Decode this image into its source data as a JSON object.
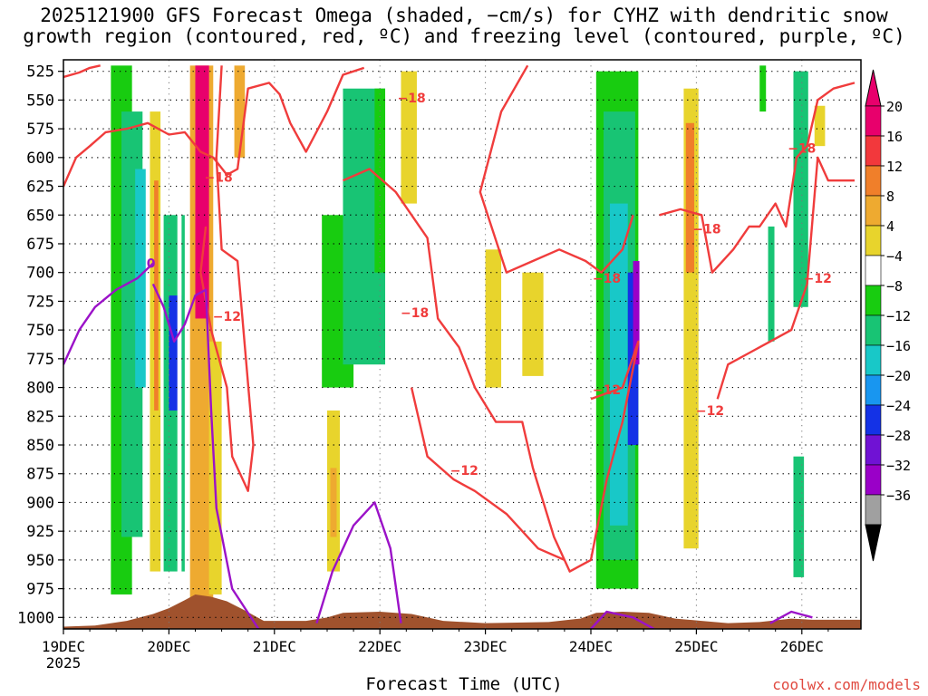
{
  "title_line1": "2025121900 GFS Forecast Omega (shaded, −cm/s) for CYHZ with dendritic snow",
  "title_line2": "growth region (contoured, red, ºC) and freezing level (contoured, purple, ºC)",
  "xlabel": "Forecast Time (UTC)",
  "credit": "coolwx.com/models",
  "chart_data": {
    "type": "heatmap",
    "x_range": [
      "2025-12-19 00Z",
      "2025-12-26 15Z"
    ],
    "x_ticks": [
      "19DEC",
      "20DEC",
      "21DEC",
      "22DEC",
      "23DEC",
      "24DEC",
      "25DEC",
      "26DEC"
    ],
    "x_tick_year": "2025",
    "y_ticks": [
      "525",
      "550",
      "575",
      "600",
      "625",
      "650",
      "675",
      "700",
      "725",
      "750",
      "775",
      "800",
      "825",
      "850",
      "875",
      "900",
      "925",
      "950",
      "975",
      "1000"
    ],
    "y_range_hpa": [
      1010,
      515
    ],
    "grid": "dotted",
    "colorbar": {
      "labels": [
        "20",
        "16",
        "12",
        "8",
        "4",
        "−4",
        "−8",
        "−12",
        "−16",
        "−20",
        "−24",
        "−28",
        "−32",
        "−36"
      ],
      "colors": [
        "#e8006c",
        "#f2383c",
        "#f07f2a",
        "#eeaa30",
        "#e8d42c",
        "#ffffff",
        "#18cc10",
        "#18c474",
        "#18c8c8",
        "#1896f0",
        "#1432e6",
        "#7012d4",
        "#9a00c8",
        "#a0a0a0"
      ],
      "overflow_high": "#e8006c",
      "overflow_low": "#000000"
    },
    "contour_labels_red": [
      {
        "day": 3.3,
        "p": 548,
        "text": "−18"
      },
      {
        "day": 1.47,
        "p": 617,
        "text": "−18"
      },
      {
        "day": 1.55,
        "p": 738,
        "text": "−12"
      },
      {
        "day": 3.33,
        "p": 735,
        "text": "−18"
      },
      {
        "day": 5.15,
        "p": 705,
        "text": "−18"
      },
      {
        "day": 5.15,
        "p": 802,
        "text": "−12"
      },
      {
        "day": 3.8,
        "p": 872,
        "text": "−12"
      },
      {
        "day": 6.1,
        "p": 662,
        "text": "−18"
      },
      {
        "day": 6.13,
        "p": 820,
        "text": "−12"
      },
      {
        "day": 7.0,
        "p": 592,
        "text": "−18"
      },
      {
        "day": 7.15,
        "p": 705,
        "text": "−12"
      }
    ],
    "contour_labels_purple": [
      {
        "day": 0.83,
        "p": 692,
        "text": "0"
      }
    ],
    "omega_bands": [
      {
        "d0": 0.45,
        "d1": 0.65,
        "p0": 520,
        "p1": 980,
        "v": -8
      },
      {
        "d0": 0.55,
        "d1": 0.75,
        "p0": 560,
        "p1": 930,
        "v": -12
      },
      {
        "d0": 0.68,
        "d1": 0.78,
        "p0": 610,
        "p1": 800,
        "v": -16
      },
      {
        "d0": 0.82,
        "d1": 0.92,
        "p0": 560,
        "p1": 960,
        "v": 4
      },
      {
        "d0": 0.86,
        "d1": 0.9,
        "p0": 620,
        "p1": 820,
        "v": 12
      },
      {
        "d0": 0.95,
        "d1": 1.15,
        "p0": 650,
        "p1": 960,
        "v": -12
      },
      {
        "d0": 1.0,
        "d1": 1.12,
        "p0": 720,
        "p1": 820,
        "v": -24
      },
      {
        "d0": 1.08,
        "d1": 1.12,
        "p0": 520,
        "p1": 980,
        "v": -4
      },
      {
        "d0": 1.2,
        "d1": 1.42,
        "p0": 520,
        "p1": 985,
        "v": 8
      },
      {
        "d0": 1.25,
        "d1": 1.38,
        "p0": 520,
        "p1": 740,
        "v": 20
      },
      {
        "d0": 1.38,
        "d1": 1.5,
        "p0": 760,
        "p1": 980,
        "v": 4
      },
      {
        "d0": 1.62,
        "d1": 1.72,
        "p0": 520,
        "p1": 600,
        "v": 8
      },
      {
        "d0": 2.45,
        "d1": 2.75,
        "p0": 650,
        "p1": 800,
        "v": -8
      },
      {
        "d0": 2.65,
        "d1": 3.05,
        "p0": 540,
        "p1": 780,
        "v": -12
      },
      {
        "d0": 2.95,
        "d1": 3.05,
        "p0": 540,
        "p1": 700,
        "v": -8
      },
      {
        "d0": 2.5,
        "d1": 2.62,
        "p0": 820,
        "p1": 960,
        "v": 4
      },
      {
        "d0": 2.53,
        "d1": 2.59,
        "p0": 870,
        "p1": 930,
        "v": 8
      },
      {
        "d0": 3.2,
        "d1": 3.35,
        "p0": 525,
        "p1": 640,
        "v": 4
      },
      {
        "d0": 4.0,
        "d1": 4.15,
        "p0": 680,
        "p1": 800,
        "v": 4
      },
      {
        "d0": 4.35,
        "d1": 4.55,
        "p0": 700,
        "p1": 790,
        "v": 4
      },
      {
        "d0": 5.05,
        "d1": 5.45,
        "p0": 525,
        "p1": 975,
        "v": -8
      },
      {
        "d0": 5.12,
        "d1": 5.42,
        "p0": 560,
        "p1": 950,
        "v": -12
      },
      {
        "d0": 5.18,
        "d1": 5.35,
        "p0": 640,
        "p1": 920,
        "v": -16
      },
      {
        "d0": 5.35,
        "d1": 5.45,
        "p0": 700,
        "p1": 850,
        "v": -24
      },
      {
        "d0": 5.4,
        "d1": 5.46,
        "p0": 690,
        "p1": 780,
        "v": -32
      },
      {
        "d0": 5.88,
        "d1": 6.02,
        "p0": 540,
        "p1": 940,
        "v": 4
      },
      {
        "d0": 5.9,
        "d1": 5.98,
        "p0": 570,
        "p1": 700,
        "v": 12
      },
      {
        "d0": 6.6,
        "d1": 6.66,
        "p0": 520,
        "p1": 560,
        "v": -8
      },
      {
        "d0": 6.68,
        "d1": 6.74,
        "p0": 660,
        "p1": 760,
        "v": -12
      },
      {
        "d0": 6.92,
        "d1": 7.06,
        "p0": 525,
        "p1": 730,
        "v": -12
      },
      {
        "d0": 6.92,
        "d1": 7.02,
        "p0": 860,
        "p1": 965,
        "v": -12
      },
      {
        "d0": 7.12,
        "d1": 7.22,
        "p0": 555,
        "p1": 590,
        "v": 4
      }
    ],
    "terrain_color": "#a0522d",
    "red_contours": [
      [
        [
          0,
          530
        ],
        [
          0.15,
          526
        ],
        [
          0.25,
          522
        ],
        [
          0.35,
          520
        ]
      ],
      [
        [
          0,
          625
        ],
        [
          0.12,
          600
        ],
        [
          0.25,
          590
        ],
        [
          0.4,
          578
        ],
        [
          0.6,
          575
        ],
        [
          0.8,
          570
        ],
        [
          1.0,
          580
        ],
        [
          1.15,
          578
        ],
        [
          1.3,
          595
        ],
        [
          1.42,
          600
        ],
        [
          1.55,
          615
        ],
        [
          1.65,
          610
        ],
        [
          1.75,
          540
        ],
        [
          1.95,
          535
        ],
        [
          2.05,
          545
        ],
        [
          2.15,
          570
        ],
        [
          2.3,
          595
        ],
        [
          2.5,
          560
        ],
        [
          2.65,
          528
        ],
        [
          2.85,
          522
        ]
      ],
      [
        [
          1.5,
          520
        ],
        [
          1.45,
          600
        ],
        [
          1.5,
          680
        ],
        [
          1.65,
          690
        ],
        [
          1.8,
          850
        ],
        [
          1.75,
          890
        ],
        [
          1.6,
          860
        ],
        [
          1.55,
          800
        ],
        [
          1.4,
          750
        ],
        [
          1.3,
          700
        ],
        [
          1.35,
          660
        ]
      ],
      [
        [
          2.65,
          620
        ],
        [
          2.9,
          610
        ],
        [
          3.15,
          630
        ],
        [
          3.45,
          670
        ],
        [
          3.55,
          740
        ],
        [
          3.75,
          765
        ],
        [
          3.9,
          800
        ],
        [
          4.1,
          830
        ],
        [
          4.35,
          830
        ],
        [
          4.45,
          870
        ],
        [
          4.65,
          930
        ],
        [
          4.8,
          960
        ],
        [
          5.0,
          950
        ],
        [
          5.15,
          880
        ],
        [
          5.3,
          830
        ],
        [
          5.45,
          760
        ],
        [
          5.3,
          800
        ],
        [
          5.0,
          810
        ]
      ],
      [
        [
          3.3,
          800
        ],
        [
          3.45,
          860
        ],
        [
          3.7,
          880
        ],
        [
          3.9,
          890
        ],
        [
          4.2,
          910
        ],
        [
          4.5,
          940
        ],
        [
          4.75,
          950
        ]
      ],
      [
        [
          4.4,
          520
        ],
        [
          4.15,
          560
        ],
        [
          3.95,
          630
        ],
        [
          4.2,
          700
        ],
        [
          4.45,
          690
        ],
        [
          4.7,
          680
        ],
        [
          4.95,
          690
        ],
        [
          5.1,
          700
        ],
        [
          5.3,
          680
        ],
        [
          5.4,
          650
        ]
      ],
      [
        [
          5.65,
          650
        ],
        [
          5.85,
          645
        ],
        [
          6.05,
          650
        ],
        [
          6.15,
          700
        ],
        [
          6.35,
          680
        ],
        [
          6.5,
          660
        ],
        [
          6.6,
          660
        ],
        [
          6.75,
          640
        ],
        [
          6.85,
          660
        ],
        [
          6.95,
          600
        ],
        [
          7.05,
          590
        ],
        [
          7.15,
          550
        ],
        [
          7.3,
          540
        ],
        [
          7.5,
          535
        ]
      ],
      [
        [
          6.2,
          810
        ],
        [
          6.3,
          780
        ],
        [
          6.5,
          770
        ],
        [
          6.7,
          760
        ],
        [
          6.9,
          750
        ],
        [
          7.05,
          710
        ],
        [
          7.15,
          600
        ],
        [
          7.25,
          620
        ],
        [
          7.5,
          620
        ]
      ]
    ],
    "purple_contours": [
      [
        [
          0,
          780
        ],
        [
          0.15,
          750
        ],
        [
          0.3,
          730
        ],
        [
          0.5,
          715
        ],
        [
          0.7,
          705
        ],
        [
          0.85,
          692
        ]
      ],
      [
        [
          0.85,
          710
        ],
        [
          0.95,
          730
        ],
        [
          1.05,
          760
        ],
        [
          1.15,
          745
        ],
        [
          1.25,
          720
        ],
        [
          1.35,
          715
        ],
        [
          1.4,
          820
        ],
        [
          1.45,
          905
        ],
        [
          1.6,
          975
        ],
        [
          1.85,
          1010
        ]
      ],
      [
        [
          2.4,
          1005
        ],
        [
          2.55,
          960
        ],
        [
          2.75,
          920
        ],
        [
          2.95,
          900
        ],
        [
          3.1,
          940
        ],
        [
          3.2,
          1005
        ]
      ],
      [
        [
          5.0,
          1010
        ],
        [
          5.15,
          995
        ],
        [
          5.4,
          1000
        ],
        [
          5.6,
          1010
        ]
      ],
      [
        [
          6.7,
          1005
        ],
        [
          6.9,
          995
        ],
        [
          7.1,
          1000
        ]
      ]
    ],
    "terrain": [
      [
        0,
        1008
      ],
      [
        0.3,
        1007
      ],
      [
        0.6,
        1003
      ],
      [
        0.85,
        997
      ],
      [
        1.0,
        992
      ],
      [
        1.15,
        985
      ],
      [
        1.25,
        980
      ],
      [
        1.4,
        982
      ],
      [
        1.55,
        986
      ],
      [
        1.7,
        993
      ],
      [
        1.9,
        1003
      ],
      [
        2.3,
        1003
      ],
      [
        2.5,
        1000
      ],
      [
        2.65,
        996
      ],
      [
        3.0,
        995
      ],
      [
        3.3,
        997
      ],
      [
        3.6,
        1003
      ],
      [
        4.0,
        1005
      ],
      [
        4.6,
        1004
      ],
      [
        4.9,
        1001
      ],
      [
        5.05,
        996
      ],
      [
        5.3,
        995
      ],
      [
        5.55,
        996
      ],
      [
        5.8,
        1001
      ],
      [
        6.05,
        1003
      ],
      [
        6.3,
        1005
      ],
      [
        6.6,
        1004
      ],
      [
        6.9,
        1001
      ],
      [
        7.1,
        1002
      ],
      [
        7.5,
        1002
      ]
    ]
  }
}
